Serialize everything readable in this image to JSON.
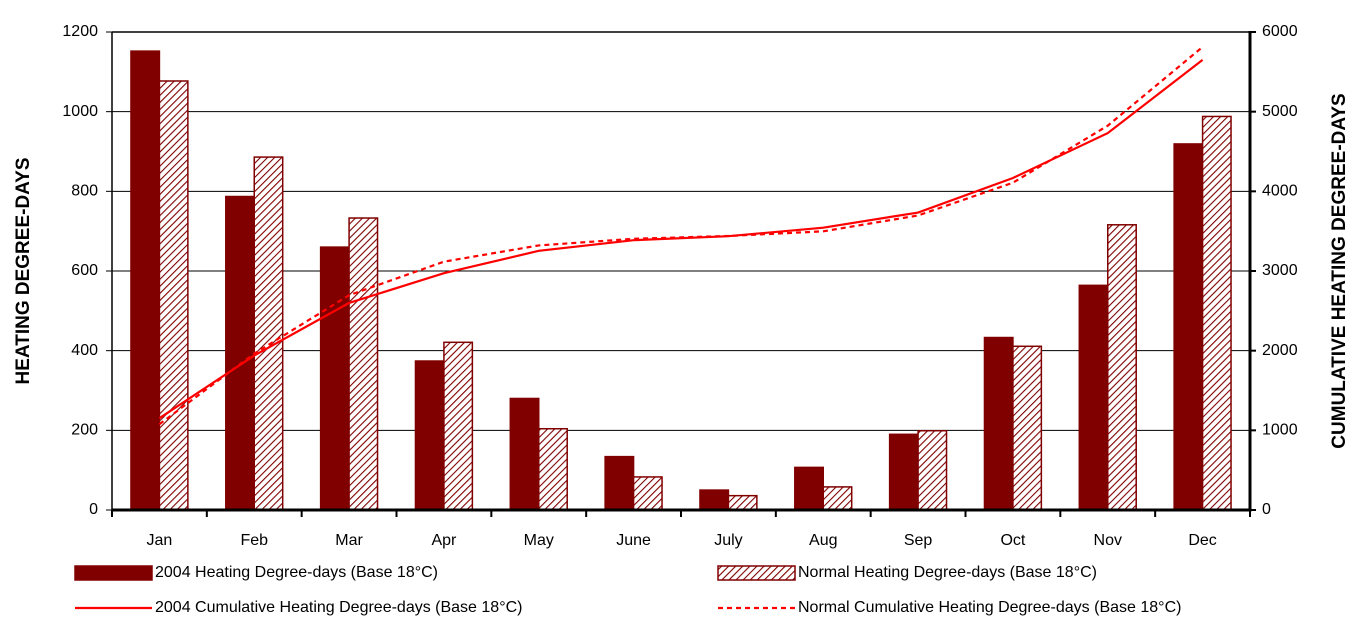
{
  "chart_data": {
    "type": "bar",
    "y_label": "HEATING DEGREE-DAYS",
    "y2_label": "CUMULATIVE HEATING DEGREE-DAYS",
    "categories": [
      "Jan",
      "Feb",
      "Mar",
      "Apr",
      "May",
      "June",
      "July",
      "Aug",
      "Sep",
      "Oct",
      "Nov",
      "Dec"
    ],
    "series": [
      {
        "name": "2004 Heating Degree-days (Base 18°C)",
        "type": "bar",
        "color": "#800000",
        "fill": "solid",
        "values": [
          1152,
          787,
          660,
          374,
          280,
          134,
          50,
          107,
          190,
          433,
          564,
          919
        ]
      },
      {
        "name": "Normal Heating Degree-days (Base 18°C)",
        "type": "bar",
        "color": "#800000",
        "fill": "hatch",
        "values": [
          1077,
          886,
          733,
          421,
          204,
          83,
          36,
          58,
          199,
          411,
          716,
          988
        ]
      },
      {
        "name": "2004 Cumulative Heating Degree-days (Base 18°C)",
        "type": "line",
        "axis": "y2",
        "color": "#ff0000",
        "line_style": "solid",
        "values": [
          1152,
          1939,
          2599,
          2973,
          3253,
          3387,
          3437,
          3544,
          3734,
          4167,
          4731,
          5650
        ]
      },
      {
        "name": "Normal Cumulative Heating Degree-days (Base 18°C)",
        "type": "line",
        "axis": "y2",
        "color": "#ff0000",
        "line_style": "dashed",
        "values": [
          1077,
          1963,
          2696,
          3117,
          3321,
          3404,
          3440,
          3498,
          3697,
          4108,
          4824,
          5812
        ]
      }
    ],
    "ylim": [
      0,
      1200
    ],
    "yticks": [
      0,
      200,
      400,
      600,
      800,
      1000,
      1200
    ],
    "y2lim": [
      0,
      6000
    ],
    "y2ticks": [
      0,
      1000,
      2000,
      3000,
      4000,
      5000,
      6000
    ],
    "grid": true,
    "legend": "bottom"
  }
}
